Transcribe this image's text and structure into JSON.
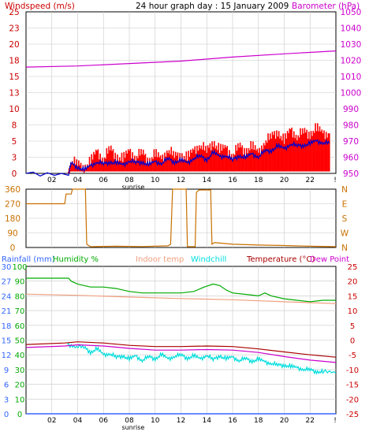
{
  "header": {
    "left_label": "Windspeed (m/s)",
    "title": "24 hour graph day : 15 January 2009",
    "right_label": "Barometer (hPa)"
  },
  "colors": {
    "wind_left": "#cc0000",
    "baro": "#cc00cc",
    "gust": "#ff0000",
    "wind_avg": "#0000cc",
    "dir": "#c87000",
    "rain": "#3366ff",
    "humidity": "#00aa00",
    "indoor": "#f0a080",
    "windchill": "#00dddd",
    "temperature": "#aa0000",
    "dew": "#cc00cc",
    "axis_right3": "#cc0000",
    "grid": "#c8c8c8"
  },
  "x_ticks": [
    "02",
    "04",
    "06",
    "08",
    "10",
    "12",
    "14",
    "16",
    "18",
    "20",
    "22"
  ],
  "x_start_label": "!",
  "sunrise_label": "sunrise",
  "chart_data": [
    {
      "type": "line",
      "name": "wind-barometer",
      "title": "24 hour graph day : 15 January 2009",
      "y_left": {
        "label": "Windspeed (m/s)",
        "ticks": [
          0,
          3,
          5,
          8,
          10,
          13,
          15,
          18,
          20,
          23,
          25
        ],
        "range": [
          0,
          25
        ]
      },
      "y_right": {
        "label": "Barometer (hPa)",
        "ticks": [
          950,
          960,
          970,
          980,
          990,
          1000,
          1010,
          1020,
          1030,
          1040,
          1050
        ],
        "range": [
          950,
          1050
        ]
      },
      "x_range_hours": [
        0,
        24
      ],
      "series": [
        {
          "name": "Windspeed (m/s)",
          "style": "gust",
          "points": [
            [
              0,
              0
            ],
            [
              3.3,
              0
            ],
            [
              3.5,
              2
            ],
            [
              4.0,
              1.4
            ],
            [
              4.5,
              1.0
            ],
            [
              5.0,
              1.8
            ],
            [
              5.5,
              3.5
            ],
            [
              6.0,
              2.2
            ],
            [
              6.5,
              3.8
            ],
            [
              7.0,
              2.8
            ],
            [
              7.5,
              2.2
            ],
            [
              8.0,
              3.5
            ],
            [
              8.5,
              2.6
            ],
            [
              9.0,
              3.2
            ],
            [
              9.5,
              2.0
            ],
            [
              10.0,
              3.0
            ],
            [
              10.5,
              2.2
            ],
            [
              11.0,
              3.8
            ],
            [
              11.5,
              2.6
            ],
            [
              12.0,
              3.0
            ],
            [
              12.5,
              2.4
            ],
            [
              13.0,
              3.6
            ],
            [
              13.5,
              4.5
            ],
            [
              14.0,
              3.4
            ],
            [
              14.5,
              5.0
            ],
            [
              15.0,
              3.6
            ],
            [
              15.5,
              4.0
            ],
            [
              16.0,
              2.8
            ],
            [
              16.5,
              4.2
            ],
            [
              17.0,
              3.6
            ],
            [
              17.5,
              4.2
            ],
            [
              18.0,
              3.2
            ],
            [
              18.5,
              5.0
            ],
            [
              19.0,
              5.6
            ],
            [
              19.5,
              6.6
            ],
            [
              20.0,
              5.0
            ],
            [
              20.5,
              6.8
            ],
            [
              21.0,
              5.8
            ],
            [
              21.5,
              6.4
            ],
            [
              22.0,
              6.2
            ],
            [
              22.5,
              7.0
            ],
            [
              23.0,
              6.2
            ],
            [
              23.5,
              6.2
            ]
          ]
        },
        {
          "name": "wind-average",
          "style": "avg",
          "points": [
            [
              0,
              0
            ],
            [
              3.3,
              0
            ],
            [
              3.5,
              1.5
            ],
            [
              4.0,
              1.0
            ],
            [
              4.5,
              0.5
            ],
            [
              5.0,
              1.2
            ],
            [
              5.5,
              1.8
            ],
            [
              6.0,
              1.4
            ],
            [
              6.5,
              1.8
            ],
            [
              7.0,
              1.6
            ],
            [
              7.5,
              1.3
            ],
            [
              8.0,
              2.0
            ],
            [
              8.5,
              1.6
            ],
            [
              9.0,
              1.8
            ],
            [
              9.5,
              1.3
            ],
            [
              10.0,
              1.8
            ],
            [
              10.5,
              1.6
            ],
            [
              11.0,
              2.2
            ],
            [
              11.5,
              1.8
            ],
            [
              12.0,
              2.0
            ],
            [
              12.5,
              1.6
            ],
            [
              13.0,
              2.4
            ],
            [
              13.5,
              2.6
            ],
            [
              14.0,
              2.2
            ],
            [
              14.5,
              3.2
            ],
            [
              15.0,
              2.6
            ],
            [
              15.5,
              2.8
            ],
            [
              16.0,
              2.0
            ],
            [
              16.5,
              2.8
            ],
            [
              17.0,
              2.4
            ],
            [
              17.5,
              3.0
            ],
            [
              18.0,
              2.6
            ],
            [
              18.5,
              3.4
            ],
            [
              19.0,
              3.6
            ],
            [
              19.5,
              4.2
            ],
            [
              20.0,
              3.8
            ],
            [
              20.5,
              4.6
            ],
            [
              21.0,
              4.2
            ],
            [
              21.5,
              4.4
            ],
            [
              22.0,
              4.6
            ],
            [
              22.5,
              5.0
            ],
            [
              23.0,
              4.8
            ],
            [
              23.5,
              4.6
            ]
          ]
        },
        {
          "name": "Barometer (hPa)",
          "style": "baro",
          "points": [
            [
              0,
              1015.8
            ],
            [
              4,
              1016.5
            ],
            [
              8,
              1018
            ],
            [
              12,
              1019.5
            ],
            [
              16,
              1022
            ],
            [
              20,
              1024
            ],
            [
              24,
              1025.8
            ]
          ]
        }
      ]
    },
    {
      "type": "line",
      "name": "wind-direction",
      "y_left": {
        "ticks": [
          0,
          90,
          180,
          270,
          360
        ],
        "range": [
          0,
          360
        ]
      },
      "y_right": {
        "ticks": [
          "N",
          "W",
          "S",
          "E",
          "N"
        ]
      },
      "x_range_hours": [
        0,
        24
      ],
      "series": [
        {
          "name": "direction",
          "points": [
            [
              0,
              270
            ],
            [
              3.0,
              270
            ],
            [
              3.1,
              330
            ],
            [
              3.5,
              330
            ],
            [
              3.6,
              360
            ],
            [
              4.6,
              360
            ],
            [
              4.7,
              20
            ],
            [
              5.0,
              5
            ],
            [
              7,
              8
            ],
            [
              9,
              6
            ],
            [
              11,
              10
            ],
            [
              11.2,
              20
            ],
            [
              11.35,
              360
            ],
            [
              12.4,
              360
            ],
            [
              12.5,
              5
            ],
            [
              13.1,
              5
            ],
            [
              13.2,
              340
            ],
            [
              13.4,
              355
            ],
            [
              14.3,
              355
            ],
            [
              14.4,
              20
            ],
            [
              14.6,
              30
            ],
            [
              16,
              20
            ],
            [
              18,
              15
            ],
            [
              20,
              12
            ],
            [
              22,
              8
            ],
            [
              24,
              5
            ]
          ]
        }
      ]
    },
    {
      "type": "line",
      "name": "temperature-humidity",
      "y_left_rain": {
        "label": "Rainfall (mm)",
        "ticks": [
          0,
          3,
          6,
          9,
          12,
          15,
          18,
          21,
          24,
          27,
          30
        ],
        "range": [
          0,
          30
        ]
      },
      "y_left_humidity": {
        "label": "Humidity %",
        "ticks": [
          0,
          10,
          20,
          30,
          40,
          50,
          60,
          70,
          80,
          90,
          100
        ],
        "range": [
          0,
          100
        ]
      },
      "y_right_temp": {
        "label": "Temperature (°C)",
        "ticks": [
          25,
          20,
          15,
          10,
          5,
          0,
          -5,
          -10,
          -15,
          -20,
          -25
        ],
        "range": [
          -25,
          25
        ]
      },
      "legend": [
        "Indoor temp",
        "Windchill",
        "Temperature (°C)",
        "Dew Point"
      ],
      "x_range_hours": [
        0,
        24
      ],
      "series": [
        {
          "name": "Humidity %",
          "style": "humidity",
          "points": [
            [
              0,
              92
            ],
            [
              3.3,
              92
            ],
            [
              3.5,
              90
            ],
            [
              4,
              88
            ],
            [
              5,
              86
            ],
            [
              6,
              86
            ],
            [
              7,
              85
            ],
            [
              8,
              83
            ],
            [
              9,
              82
            ],
            [
              10,
              82
            ],
            [
              11,
              82
            ],
            [
              12,
              82
            ],
            [
              13,
              83
            ],
            [
              13.8,
              86
            ],
            [
              14.5,
              88
            ],
            [
              15,
              87
            ],
            [
              15.5,
              84
            ],
            [
              16,
              82
            ],
            [
              17,
              81
            ],
            [
              18,
              80
            ],
            [
              18.5,
              82
            ],
            [
              19,
              80
            ],
            [
              20,
              78
            ],
            [
              21,
              77
            ],
            [
              22,
              76
            ],
            [
              23,
              77
            ],
            [
              24,
              77
            ]
          ]
        },
        {
          "name": "Indoor temp",
          "style": "indoor",
          "points": [
            [
              0,
              15.6
            ],
            [
              4,
              15.2
            ],
            [
              8,
              14.6
            ],
            [
              12,
              14.1
            ],
            [
              16,
              13.7
            ],
            [
              20,
              13.0
            ],
            [
              24,
              12.4
            ]
          ]
        },
        {
          "name": "Temperature (°C)",
          "style": "temperature",
          "points": [
            [
              0,
              -1.5
            ],
            [
              3,
              -1.0
            ],
            [
              4,
              -0.6
            ],
            [
              6,
              -1.0
            ],
            [
              8,
              -1.8
            ],
            [
              10,
              -2.2
            ],
            [
              12,
              -2.2
            ],
            [
              14,
              -2.0
            ],
            [
              16,
              -2.2
            ],
            [
              18,
              -3.0
            ],
            [
              20,
              -4.0
            ],
            [
              22,
              -5.0
            ],
            [
              24,
              -5.8
            ]
          ]
        },
        {
          "name": "Dew Point",
          "style": "dew",
          "points": [
            [
              0,
              -2.5
            ],
            [
              3,
              -2.0
            ],
            [
              4,
              -1.6
            ],
            [
              6,
              -2.0
            ],
            [
              8,
              -2.8
            ],
            [
              10,
              -3.4
            ],
            [
              12,
              -3.4
            ],
            [
              14,
              -3.2
            ],
            [
              16,
              -3.4
            ],
            [
              18,
              -4.2
            ],
            [
              20,
              -5.6
            ],
            [
              22,
              -6.8
            ],
            [
              24,
              -7.6
            ]
          ]
        },
        {
          "name": "Windchill",
          "style": "windchill",
          "points": [
            [
              3.2,
              -1.5
            ],
            [
              3.8,
              -2.0
            ],
            [
              4.5,
              -2.6
            ],
            [
              5,
              -4.0
            ],
            [
              5.5,
              -3.0
            ],
            [
              6,
              -5.0
            ],
            [
              6.5,
              -4.5
            ],
            [
              7,
              -6.0
            ],
            [
              7.5,
              -5.2
            ],
            [
              8,
              -6.5
            ],
            [
              8.5,
              -5.4
            ],
            [
              9,
              -6.8
            ],
            [
              9.5,
              -5.8
            ],
            [
              10,
              -6.2
            ],
            [
              10.5,
              -5.0
            ],
            [
              11,
              -6.4
            ],
            [
              11.5,
              -5.4
            ],
            [
              12,
              -5.2
            ],
            [
              12.5,
              -6.0
            ],
            [
              13,
              -5.4
            ],
            [
              13.5,
              -6.4
            ],
            [
              14,
              -5.0
            ],
            [
              14.5,
              -6.8
            ],
            [
              15,
              -5.2
            ],
            [
              15.5,
              -6.4
            ],
            [
              16,
              -5.8
            ],
            [
              16.5,
              -6.8
            ],
            [
              17,
              -6.4
            ],
            [
              17.5,
              -7.0
            ],
            [
              18,
              -6.6
            ],
            [
              18.5,
              -7.4
            ],
            [
              19,
              -7.8
            ],
            [
              19.5,
              -8.6
            ],
            [
              20,
              -8.4
            ],
            [
              20.5,
              -9.0
            ],
            [
              21,
              -9.4
            ],
            [
              21.5,
              -9.8
            ],
            [
              22,
              -10.2
            ],
            [
              22.5,
              -10.6
            ],
            [
              23,
              -10.8
            ],
            [
              24,
              -11.2
            ]
          ]
        },
        {
          "name": "Rainfall (mm)",
          "style": "rain",
          "points": [
            [
              0,
              0
            ],
            [
              24,
              0
            ]
          ]
        }
      ]
    }
  ]
}
